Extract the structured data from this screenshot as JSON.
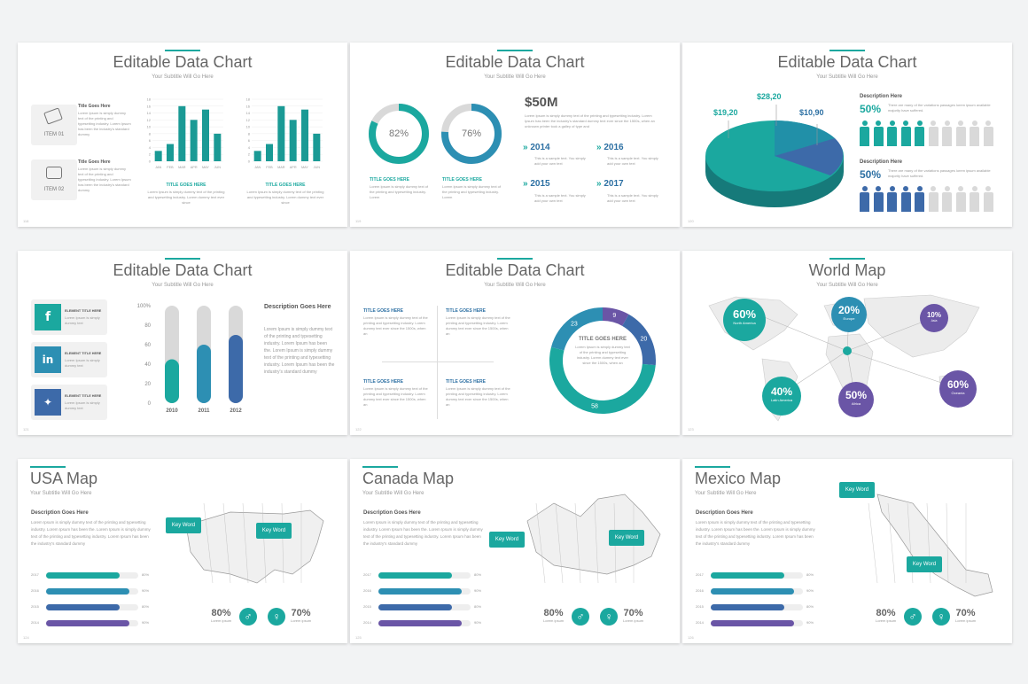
{
  "colors": {
    "teal": "#1ba89f",
    "blue": "#2d70a3",
    "navy": "#3a5a9a",
    "purple": "#6a55a6",
    "gray": "#d9d9d9"
  },
  "chart_title": "Editable Data Chart",
  "subtitle": "Your Subtitle Will Go Here",
  "lorem_short": "Lorem Ipsum is simply dummy text of the printing and typesetting industry.",
  "slide1": {
    "item1_title": "Title Goes Here",
    "item1_label": "ITEM 01",
    "item1_text": "Lorem Ipsum is simply dummy text of the printing and typesetting industry. Lorem Ipsum has been the industry's standard dummy",
    "item2_title": "Title Goes Here",
    "item2_label": "ITEM 02",
    "item2_text": "Lorem Ipsum is simply dummy text of the printing and typesetting industry. Lorem Ipsum has been the industry's standard dummy",
    "chart_caption": "TITLE GOES HERE",
    "chart_text": "Lorem Ipsum is simply dummy text of the printing and typesetting industry. Lorem dummy text ever since",
    "page": "118"
  },
  "slide2": {
    "donut1": "82%",
    "donut2": "76%",
    "cap": "TITLE GOES HERE",
    "cap_text": "Lorem Ipsum is simply dummy text of the printing and typesetting industry. Lorem",
    "big": "$50M",
    "big_text": "Lorem Ipsum is simply dummy text of the printing and typesetting industry. Lorem Ipsum has been the industry's standard dummy text ever since the 1500s, when an unknown printer took a galley of type and",
    "years": [
      "2014",
      "2016",
      "2015",
      "2017"
    ],
    "year_text": "This is a sample text. You simply add your own text",
    "page": "119"
  },
  "slide3": {
    "v1": "$19,20",
    "v2": "$28,20",
    "v3": "$10,90",
    "desc1": "Description Here",
    "desc2": "Description Here",
    "pct1": "50%",
    "pct2": "50%",
    "desc_text": "There are many of the variations passages lorem ipsum available majority have suffered.",
    "page": "120"
  },
  "slide4": {
    "social": [
      {
        "t": "ELEMENT TITLE HERE",
        "x": "Lorem Ipsum is simply dummy text"
      },
      {
        "t": "ELEMENT TITLE HERE",
        "x": "Lorem Ipsum is simply dummy text"
      },
      {
        "t": "ELEMENT TITLE HERE",
        "x": "Lorem Ipsum is simply dummy text"
      }
    ],
    "desc_title": "Description Goes Here",
    "desc_text": "Lorem Ipsum is simply dummy text of the printing and typesetting industry. Lorem Ipsum has been the. Lorem Ipsum is simply dummy text of the printing and typesetting industry. Lorem Ipsum has been the industry's standard dummy",
    "page": "121"
  },
  "slide5": {
    "q_title": "TITLE GOES HERE",
    "q_text": "Lorem Ipsum is simply dummy text of the printing and typesetting industry. Lorem dummy text ever since the 1500s, when an",
    "center_title": "TITLE GOES HERE",
    "center_text": "Lorem Ipsum is simply dummy text of the printing and typesetting industry. Lorem dummy text ever since the 1500s, when an",
    "seg": [
      "9",
      "20",
      "58",
      "23"
    ],
    "page": "122"
  },
  "slide6": {
    "title": "World Map",
    "c1": "60%",
    "c1l": "North America",
    "c2": "20%",
    "c2l": "Europe",
    "c3": "10%",
    "c3l": "Asia",
    "c4": "40%",
    "c4l": "Latin America",
    "c5": "50%",
    "c5l": "Africa",
    "c6": "60%",
    "c6l": "Oceania",
    "page": "123"
  },
  "maps": [
    {
      "title": "USA Map",
      "page": "124"
    },
    {
      "title": "Canada Map",
      "page": "125"
    },
    {
      "title": "Mexico Map",
      "page": "126"
    }
  ],
  "map_common": {
    "desc_title": "Description Goes Here",
    "desc_text": "Lorem Ipsum is simply dummy text of the printing and typesetting industry. Lorem Ipsum has been the. Lorem Ipsum is simply dummy text of the printing and typesetting industry. Lorem Ipsum has been the industry's standard dummy",
    "bars": [
      {
        "y": "2017",
        "v": "80%"
      },
      {
        "y": "2016",
        "v": "90%"
      },
      {
        "y": "2015",
        "v": "80%"
      },
      {
        "y": "2014",
        "v": "90%"
      }
    ],
    "stat1": "80%",
    "stat2": "70%",
    "stat_lbl": "Lorem ipsum",
    "kw": "Key Word"
  },
  "chart_data": [
    {
      "type": "bar",
      "categories": [
        "JAN",
        "FEB",
        "MAR",
        "APR",
        "MAY",
        "JUN"
      ],
      "values": [
        3,
        5,
        16,
        12,
        15,
        8
      ],
      "ylim": [
        0,
        18
      ],
      "yticks": [
        "0",
        "2",
        "4",
        "6",
        "8",
        "10",
        "12",
        "14",
        "16",
        "18"
      ]
    },
    {
      "type": "bar",
      "categories": [
        "JAN",
        "FEB",
        "MAR",
        "APR",
        "MAY",
        "JUN"
      ],
      "values": [
        3,
        5,
        16,
        12,
        15,
        8
      ],
      "ylim": [
        0,
        18
      ],
      "yticks": [
        "0",
        "2",
        "4",
        "6",
        "8",
        "10",
        "12",
        "14",
        "16",
        "18"
      ]
    },
    {
      "type": "bar",
      "categories": [
        "2010",
        "2011",
        "2012"
      ],
      "values": [
        45,
        60,
        70
      ],
      "ylim": [
        0,
        100
      ],
      "yticks": [
        "0",
        "20",
        "40",
        "60",
        "80",
        "100%"
      ]
    },
    {
      "type": "pie",
      "values": [
        19.2,
        28.2,
        10.9
      ],
      "labels": [
        "$19,20",
        "$28,20",
        "$10,90"
      ]
    },
    {
      "type": "pie",
      "values": [
        9,
        20,
        58,
        23
      ],
      "labels": [
        "9",
        "20",
        "58",
        "23"
      ]
    }
  ]
}
